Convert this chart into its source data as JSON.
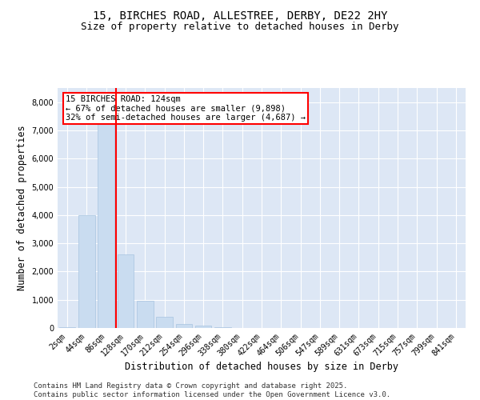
{
  "title_line1": "15, BIRCHES ROAD, ALLESTREE, DERBY, DE22 2HY",
  "title_line2": "Size of property relative to detached houses in Derby",
  "xlabel": "Distribution of detached houses by size in Derby",
  "ylabel": "Number of detached properties",
  "categories": [
    "2sqm",
    "44sqm",
    "86sqm",
    "128sqm",
    "170sqm",
    "212sqm",
    "254sqm",
    "296sqm",
    "338sqm",
    "380sqm",
    "422sqm",
    "464sqm",
    "506sqm",
    "547sqm",
    "589sqm",
    "631sqm",
    "673sqm",
    "715sqm",
    "757sqm",
    "799sqm",
    "841sqm"
  ],
  "values": [
    30,
    4000,
    7500,
    2600,
    950,
    400,
    130,
    80,
    20,
    0,
    0,
    0,
    0,
    0,
    0,
    0,
    0,
    0,
    0,
    0,
    0
  ],
  "bar_color": "#c9dcf0",
  "bar_edgecolor": "#a8c4e0",
  "annotation_line1": "15 BIRCHES ROAD: 124sqm",
  "annotation_line2": "← 67% of detached houses are smaller (9,898)",
  "annotation_line3": "32% of semi-detached houses are larger (4,687) →",
  "annotation_box_facecolor": "white",
  "annotation_box_edgecolor": "red",
  "vline_color": "red",
  "vline_x": 2.5,
  "ylim": [
    0,
    8500
  ],
  "yticks": [
    0,
    1000,
    2000,
    3000,
    4000,
    5000,
    6000,
    7000,
    8000
  ],
  "plot_background": "#dde7f5",
  "grid_color": "white",
  "footer_line1": "Contains HM Land Registry data © Crown copyright and database right 2025.",
  "footer_line2": "Contains public sector information licensed under the Open Government Licence v3.0.",
  "title_fontsize": 10,
  "subtitle_fontsize": 9,
  "axis_label_fontsize": 8.5,
  "tick_fontsize": 7,
  "annotation_fontsize": 7.5,
  "footer_fontsize": 6.5
}
